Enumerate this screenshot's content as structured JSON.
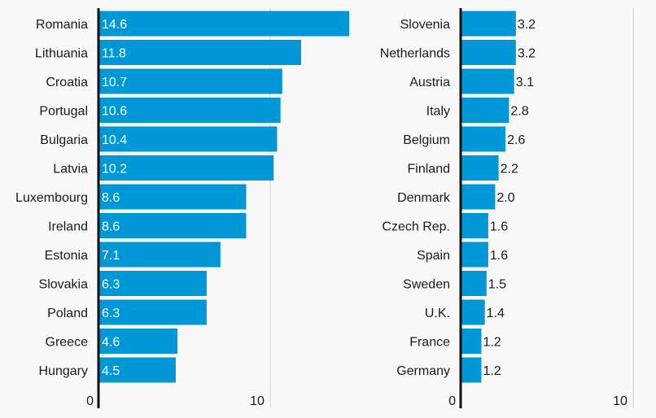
{
  "colors": {
    "bar": "#0097d7",
    "axis": "#111111",
    "gridline": "#cfcfcf",
    "background": "#f8f8f8"
  },
  "chart_data": [
    {
      "type": "bar",
      "orientation": "horizontal",
      "categories": [
        "Romania",
        "Lithuania",
        "Croatia",
        "Portugal",
        "Bulgaria",
        "Latvia",
        "Luxembourg",
        "Ireland",
        "Estonia",
        "Slovakia",
        "Poland",
        "Greece",
        "Hungary"
      ],
      "values": [
        14.6,
        11.8,
        10.7,
        10.6,
        10.4,
        10.2,
        8.6,
        8.6,
        7.1,
        6.3,
        6.3,
        4.6,
        4.5
      ],
      "value_labels": [
        "14.6",
        "11.8",
        "10.7",
        "10.6",
        "10.4",
        "10.2",
        "8.6",
        "8.6",
        "7.1",
        "6.3",
        "6.3",
        "4.6",
        "4.5"
      ],
      "xticks": [
        0,
        10
      ],
      "xtick_labels": [
        "0",
        "10"
      ],
      "xlim": [
        0,
        15.5
      ],
      "label_position": "inside",
      "grid": true
    },
    {
      "type": "bar",
      "orientation": "horizontal",
      "categories": [
        "Slovenia",
        "Netherlands",
        "Austria",
        "Italy",
        "Belgium",
        "Finland",
        "Denmark",
        "Czech Rep.",
        "Spain",
        "Sweden",
        "U.K.",
        "France",
        "Germany"
      ],
      "values": [
        3.2,
        3.2,
        3.1,
        2.8,
        2.6,
        2.2,
        2.0,
        1.6,
        1.6,
        1.5,
        1.4,
        1.2,
        1.2
      ],
      "value_labels": [
        "3.2",
        "3.2",
        "3.1",
        "2.8",
        "2.6",
        "2.2",
        "2.0",
        "1.6",
        "1.6",
        "1.5",
        "1.4",
        "1.2",
        "1.2"
      ],
      "xticks": [
        0,
        10
      ],
      "xtick_labels": [
        "0",
        "10"
      ],
      "xlim": [
        0,
        11
      ],
      "label_position": "outside",
      "grid": true
    }
  ]
}
